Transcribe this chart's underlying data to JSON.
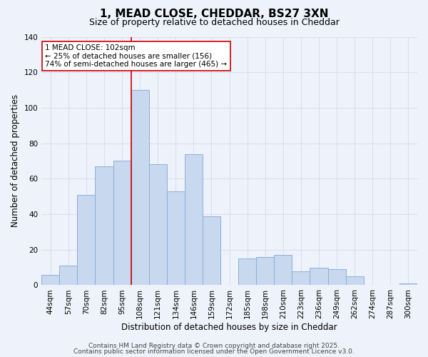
{
  "title": "1, MEAD CLOSE, CHEDDAR, BS27 3XN",
  "subtitle": "Size of property relative to detached houses in Cheddar",
  "xlabel": "Distribution of detached houses by size in Cheddar",
  "ylabel": "Number of detached properties",
  "bar_labels": [
    "44sqm",
    "57sqm",
    "70sqm",
    "82sqm",
    "95sqm",
    "108sqm",
    "121sqm",
    "134sqm",
    "146sqm",
    "159sqm",
    "172sqm",
    "185sqm",
    "198sqm",
    "210sqm",
    "223sqm",
    "236sqm",
    "249sqm",
    "262sqm",
    "274sqm",
    "287sqm",
    "300sqm"
  ],
  "bar_values": [
    6,
    11,
    51,
    67,
    70,
    110,
    68,
    53,
    74,
    39,
    0,
    15,
    16,
    17,
    8,
    10,
    9,
    5,
    0,
    0,
    1
  ],
  "bar_color": "#c8d8ee",
  "bar_edge_color": "#8ab0d8",
  "vline_x_index": 5,
  "vline_color": "#cc0000",
  "ylim": [
    0,
    140
  ],
  "annotation_title": "1 MEAD CLOSE: 102sqm",
  "annotation_line1": "← 25% of detached houses are smaller (156)",
  "annotation_line2": "74% of semi-detached houses are larger (465) →",
  "footer_line1": "Contains HM Land Registry data © Crown copyright and database right 2025.",
  "footer_line2": "Contains public sector information licensed under the Open Government Licence v3.0.",
  "bg_color": "#eef2fb",
  "grid_color": "#d8e0f0",
  "title_fontsize": 11,
  "subtitle_fontsize": 9,
  "axis_label_fontsize": 8.5,
  "tick_fontsize": 7.5,
  "annotation_fontsize": 7.5,
  "footer_fontsize": 6.5
}
